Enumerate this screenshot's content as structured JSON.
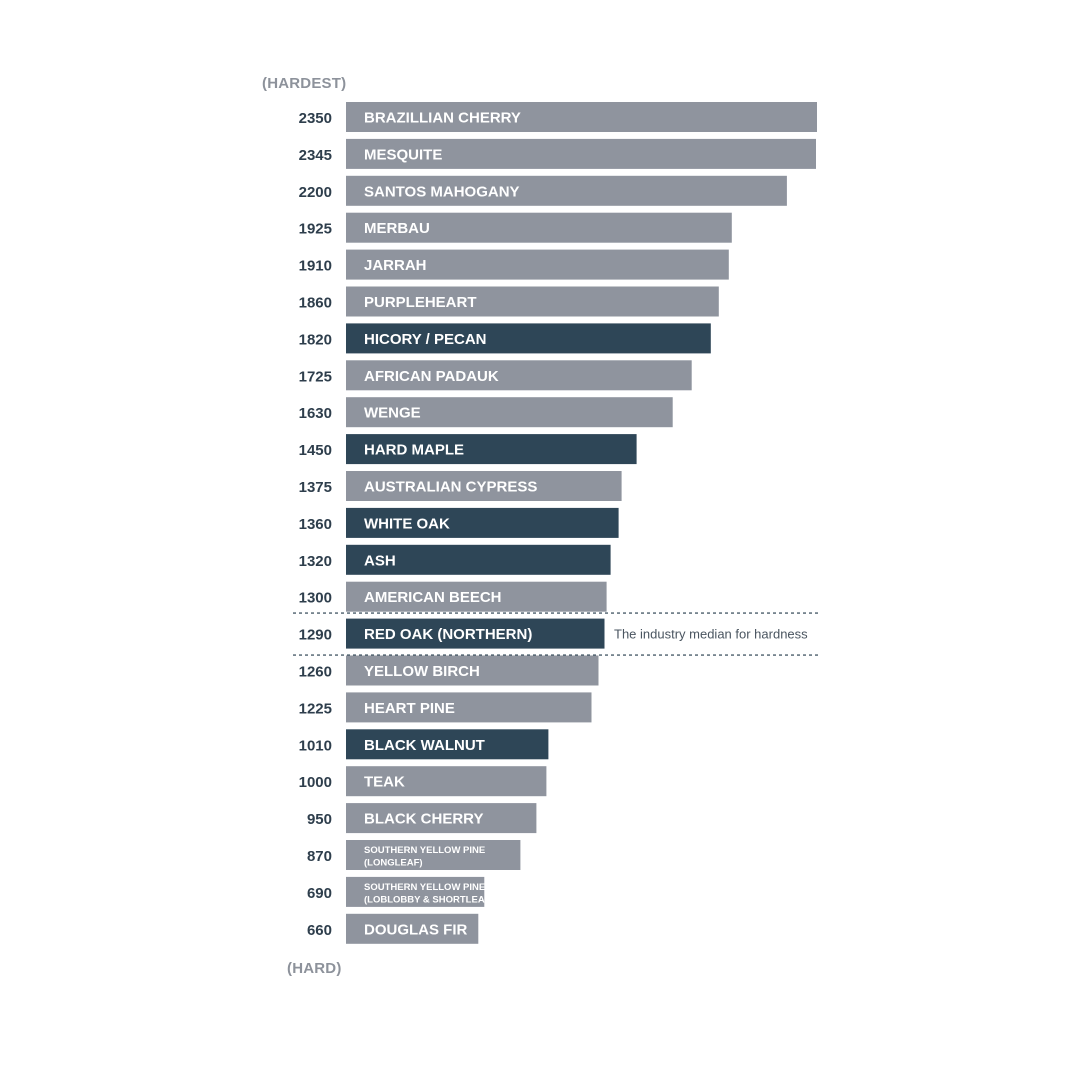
{
  "scale": {
    "top_label": "(HARDEST)",
    "bottom_label": "(HARD)"
  },
  "colors": {
    "bar_default": "#8f949e",
    "bar_highlight": "#2e4657",
    "value_text": "#2e3e4c",
    "bar_text": "#ffffff",
    "median_line": "#4a5d6a",
    "median_text": "#4a5560"
  },
  "chart_data": {
    "type": "bar",
    "orientation": "horizontal",
    "categories": [
      [
        "BRAZILLIAN CHERRY"
      ],
      [
        "MESQUITE"
      ],
      [
        "SANTOS MAHOGANY"
      ],
      [
        "MERBAU"
      ],
      [
        "JARRAH"
      ],
      [
        "PURPLEHEART"
      ],
      [
        "HICORY / PECAN"
      ],
      [
        "AFRICAN PADAUK"
      ],
      [
        "WENGE"
      ],
      [
        "HARD MAPLE"
      ],
      [
        "AUSTRALIAN CYPRESS"
      ],
      [
        "WHITE OAK"
      ],
      [
        "ASH"
      ],
      [
        "AMERICAN BEECH"
      ],
      [
        "RED OAK (NORTHERN)"
      ],
      [
        "YELLOW BIRCH"
      ],
      [
        "HEART PINE"
      ],
      [
        "BLACK WALNUT"
      ],
      [
        "TEAK"
      ],
      [
        "BLACK CHERRY"
      ],
      [
        "SOUTHERN YELLOW PINE",
        "(LONGLEAF)"
      ],
      [
        "SOUTHERN YELLOW PINE",
        "(LOBLOBBY & SHORTLEAF)"
      ],
      [
        "DOUGLAS FIR"
      ]
    ],
    "values": [
      2350,
      2345,
      2200,
      1925,
      1910,
      1860,
      1820,
      1725,
      1630,
      1450,
      1375,
      1360,
      1320,
      1300,
      1290,
      1260,
      1225,
      1010,
      1000,
      950,
      870,
      690,
      660
    ],
    "highlighted": [
      "HICORY / PECAN",
      "HARD MAPLE",
      "WHITE OAK",
      "ASH",
      "RED OAK (NORTHERN)",
      "BLACK WALNUT"
    ],
    "annotation": {
      "category": "RED OAK (NORTHERN)",
      "text": "The industry median for hardness"
    }
  }
}
